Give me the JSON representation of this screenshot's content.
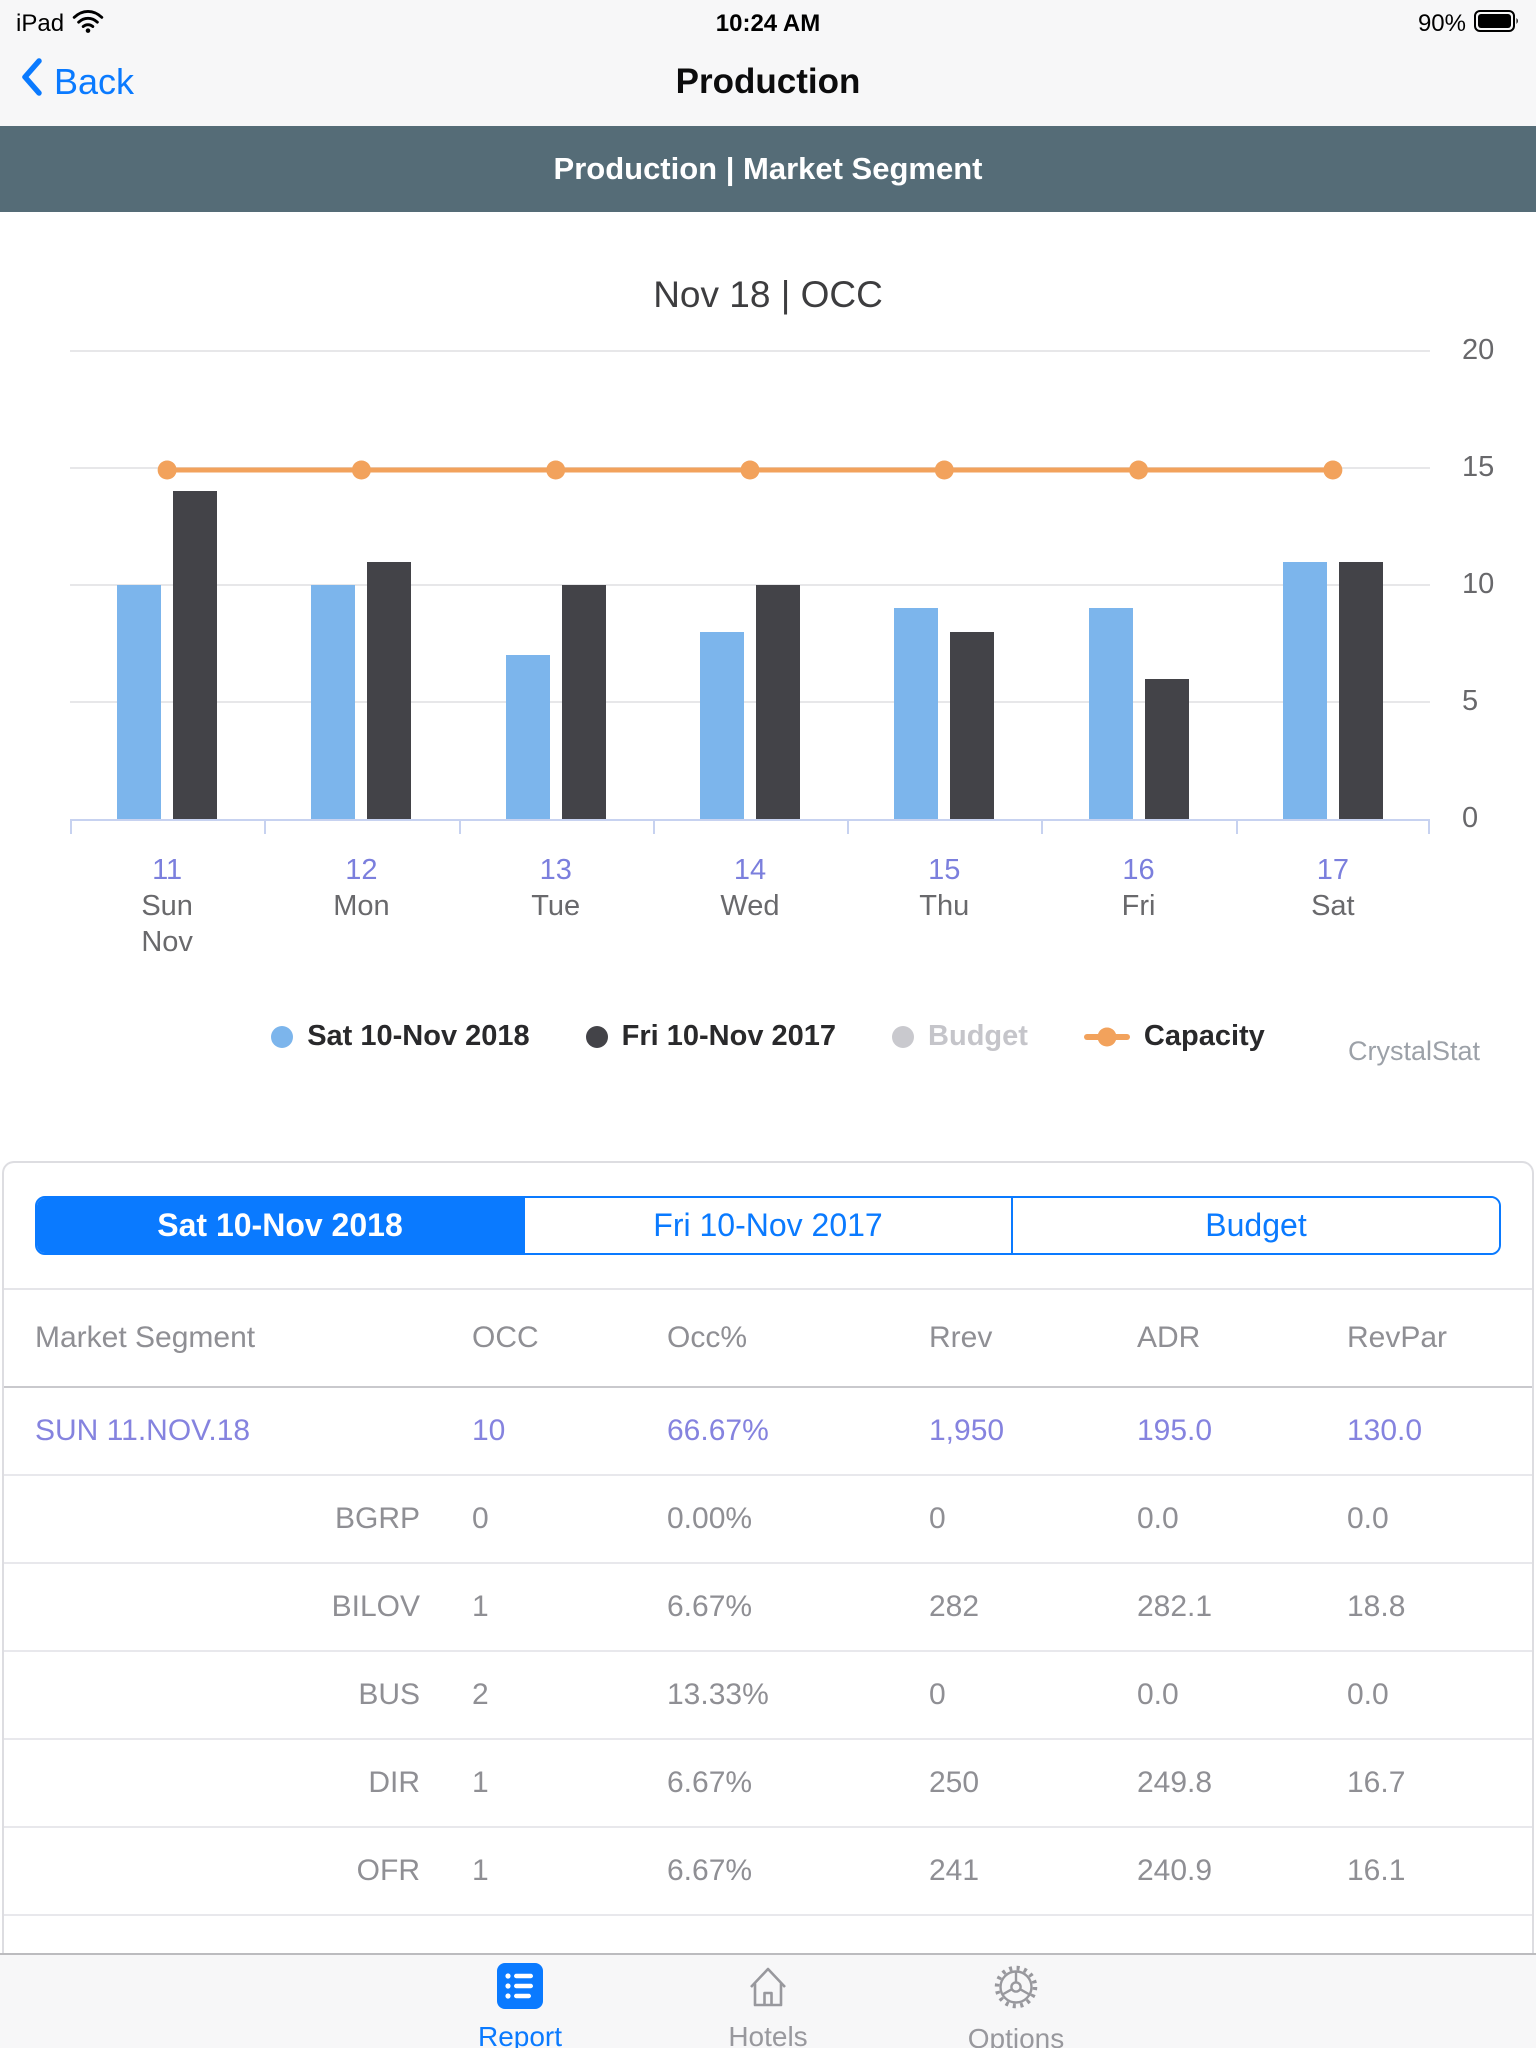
{
  "status_bar": {
    "carrier": "iPad",
    "time": "10:24 AM",
    "battery": "90%"
  },
  "nav": {
    "back_label": "Back",
    "title": "Production"
  },
  "banner": {
    "title": "Production | Market Segment"
  },
  "chart_data": {
    "type": "bar",
    "title": "Nov 18 | OCC",
    "categories": [
      {
        "num": "11",
        "day": "Sun",
        "month": "Nov"
      },
      {
        "num": "12",
        "day": "Mon"
      },
      {
        "num": "13",
        "day": "Tue"
      },
      {
        "num": "14",
        "day": "Wed"
      },
      {
        "num": "15",
        "day": "Thu"
      },
      {
        "num": "16",
        "day": "Fri"
      },
      {
        "num": "17",
        "day": "Sat"
      }
    ],
    "series": [
      {
        "name": "Sat 10-Nov 2018",
        "type": "bar",
        "color": "#7cb5ec",
        "enabled": true,
        "values": [
          10,
          10,
          7,
          8,
          9,
          9,
          11
        ]
      },
      {
        "name": "Fri 10-Nov 2017",
        "type": "bar",
        "color": "#434348",
        "enabled": true,
        "values": [
          14,
          11,
          10,
          10,
          8,
          6,
          11
        ]
      },
      {
        "name": "Budget",
        "type": "bar",
        "color": "#c9c9ce",
        "enabled": false,
        "values": []
      },
      {
        "name": "Capacity",
        "type": "line",
        "color": "#f2a25c",
        "enabled": true,
        "values": [
          15,
          15,
          15,
          15,
          15,
          15,
          15
        ]
      }
    ],
    "ylim": [
      0,
      20
    ],
    "yticks": [
      0,
      5,
      10,
      15,
      20
    ],
    "grid": true,
    "legend_position": "bottom",
    "watermark": "CrystalStat"
  },
  "segmented_control": {
    "options": [
      {
        "label": "Sat 10-Nov 2018",
        "selected": true
      },
      {
        "label": "Fri 10-Nov 2017",
        "selected": false
      },
      {
        "label": "Budget",
        "selected": false
      }
    ]
  },
  "table": {
    "headers": [
      "Market Segment",
      "OCC",
      "Occ%",
      "Rrev",
      "ADR",
      "RevPar"
    ],
    "rows": [
      {
        "segment": "SUN 11.NOV.18",
        "occ": "10",
        "occ_pct": "66.67%",
        "rrev": "1,950",
        "adr": "195.0",
        "revpar": "130.0",
        "style": "summary"
      },
      {
        "segment": "BGRP",
        "occ": "0",
        "occ_pct": "0.00%",
        "rrev": "0",
        "adr": "0.0",
        "revpar": "0.0",
        "style": "detail"
      },
      {
        "segment": "BILOV",
        "occ": "1",
        "occ_pct": "6.67%",
        "rrev": "282",
        "adr": "282.1",
        "revpar": "18.8",
        "style": "detail"
      },
      {
        "segment": "BUS",
        "occ": "2",
        "occ_pct": "13.33%",
        "rrev": "0",
        "adr": "0.0",
        "revpar": "0.0",
        "style": "detail"
      },
      {
        "segment": "DIR",
        "occ": "1",
        "occ_pct": "6.67%",
        "rrev": "250",
        "adr": "249.8",
        "revpar": "16.7",
        "style": "detail"
      },
      {
        "segment": "OFR",
        "occ": "1",
        "occ_pct": "6.67%",
        "rrev": "241",
        "adr": "240.9",
        "revpar": "16.1",
        "style": "detail"
      }
    ]
  },
  "tab_bar": {
    "items": [
      {
        "label": "Report",
        "icon": "report-list-icon",
        "active": true
      },
      {
        "label": "Hotels",
        "icon": "hotels-house-icon",
        "active": false
      },
      {
        "label": "Options",
        "icon": "options-gear-icon",
        "active": false
      }
    ]
  },
  "colors": {
    "accent": "#0a7aff",
    "banner_bg": "#556c77",
    "bar_2018": "#7cb5ec",
    "bar_2017": "#434348",
    "budget": "#c9c9ce",
    "capacity": "#f2a25c",
    "highlight_text": "#8583df"
  }
}
